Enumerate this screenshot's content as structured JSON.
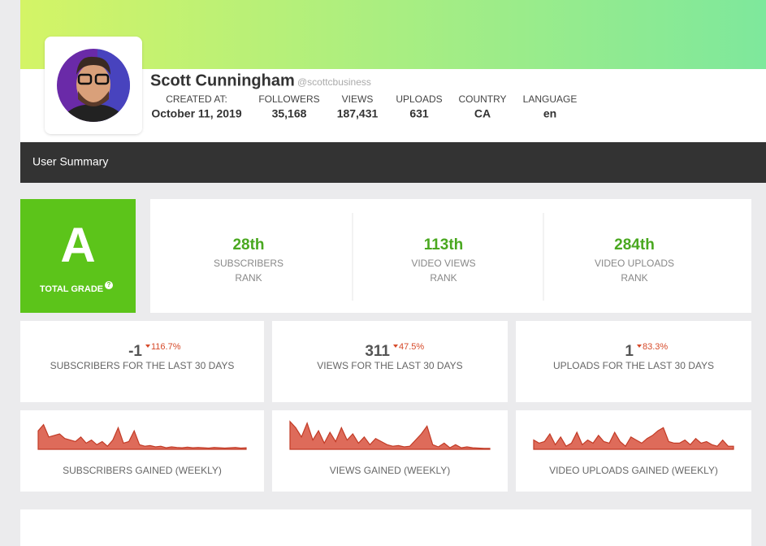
{
  "header": {
    "name": "Scott Cunningham",
    "handle": "@scottcbusiness",
    "stats": [
      {
        "label": "CREATED AT:",
        "value": "October 11, 2019"
      },
      {
        "label": "FOLLOWERS",
        "value": "35,168"
      },
      {
        "label": "VIEWS",
        "value": "187,431"
      },
      {
        "label": "UPLOADS",
        "value": "631"
      },
      {
        "label": "COUNTRY",
        "value": "CA"
      },
      {
        "label": "LANGUAGE",
        "value": "en"
      }
    ]
  },
  "summary_bar": {
    "title": "User Summary"
  },
  "grade": {
    "letter": "A",
    "label": "TOTAL GRADE"
  },
  "ranks": [
    {
      "rank": "28th",
      "label": "SUBSCRIBERS",
      "sub": "RANK"
    },
    {
      "rank": "113th",
      "label": "VIDEO VIEWS",
      "sub": "RANK"
    },
    {
      "rank": "284th",
      "label": "VIDEO UPLOADS",
      "sub": "RANK"
    }
  ],
  "stats30": [
    {
      "value": "-1",
      "change": "116.7%",
      "label": "SUBSCRIBERS FOR THE LAST 30 DAYS"
    },
    {
      "value": "311",
      "change": "47.5%",
      "label": "VIEWS FOR THE LAST 30 DAYS"
    },
    {
      "value": "1",
      "change": "83.3%",
      "label": "UPLOADS FOR THE LAST 30 DAYS"
    }
  ],
  "sparklines": [
    {
      "label": "SUBSCRIBERS GAINED (WEEKLY)",
      "ylim": [
        0,
        100
      ],
      "values": [
        60,
        80,
        40,
        45,
        50,
        35,
        30,
        25,
        40,
        20,
        30,
        15,
        25,
        10,
        30,
        70,
        20,
        25,
        60,
        15,
        10,
        12,
        8,
        10,
        5,
        8,
        6,
        5,
        7,
        5,
        6,
        5,
        4,
        6,
        5,
        4,
        5,
        6,
        4,
        5
      ]
    },
    {
      "label": "VIEWS GAINED (WEEKLY)",
      "ylim": [
        0,
        100
      ],
      "values": [
        90,
        70,
        40,
        85,
        30,
        60,
        20,
        55,
        25,
        70,
        30,
        50,
        20,
        40,
        15,
        35,
        25,
        15,
        10,
        12,
        8,
        10,
        30,
        50,
        75,
        15,
        8,
        20,
        5,
        15,
        5,
        8,
        5,
        4,
        3,
        3
      ]
    },
    {
      "label": "VIDEO UPLOADS GAINED (WEEKLY)",
      "ylim": [
        0,
        100
      ],
      "values": [
        30,
        20,
        25,
        50,
        15,
        40,
        10,
        20,
        55,
        15,
        30,
        20,
        45,
        25,
        20,
        55,
        25,
        10,
        40,
        30,
        20,
        35,
        45,
        60,
        70,
        25,
        20,
        20,
        30,
        15,
        35,
        20,
        25,
        15,
        10,
        30,
        10,
        10
      ]
    }
  ]
}
